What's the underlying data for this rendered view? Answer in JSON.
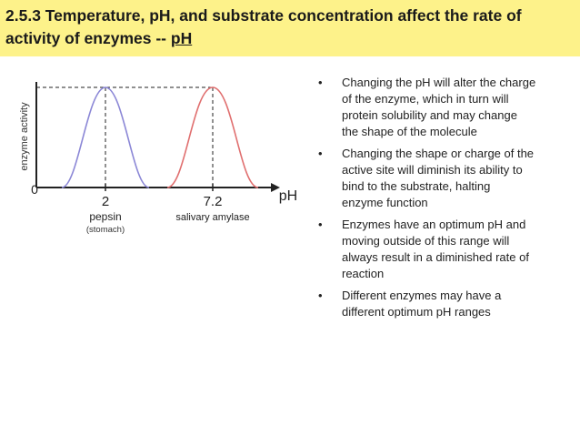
{
  "title": {
    "line1": "2.5.3 Temperature, pH, and substrate concentration affect the rate of",
    "line2_prefix": "activity of enzymes -- ",
    "line2_link": "pH"
  },
  "graph": {
    "ylabel": "enzyme activity",
    "origin_label": "0",
    "x_axis_label": "pH",
    "peak1_value": "2",
    "peak1_name": "pepsin",
    "peak1_location": "(stomach)",
    "peak2_value": "7.2",
    "peak2_name": "salivary amylase",
    "colors": {
      "pepsin": "#8b87d6",
      "amylase": "#e06f6f"
    }
  },
  "bullets": [
    {
      "marker": "•",
      "lines": [
        "Changing the pH will alter the charge",
        "of the enzyme, which in turn will",
        "protein solubility and may change",
        "the shape of the molecule"
      ]
    },
    {
      "marker": "•",
      "lines": [
        "Changing the shape or charge of the",
        "active site will diminish its ability to",
        "bind to the substrate, halting",
        "enzyme function"
      ]
    },
    {
      "marker": "•",
      "lines": [
        "Enzymes have an optimum pH and",
        "moving outside of this range will",
        "always result in a diminished rate of",
        "reaction"
      ]
    },
    {
      "marker": "•",
      "lines": [
        "Different enzymes may have a",
        "different optimum pH ranges"
      ]
    }
  ]
}
